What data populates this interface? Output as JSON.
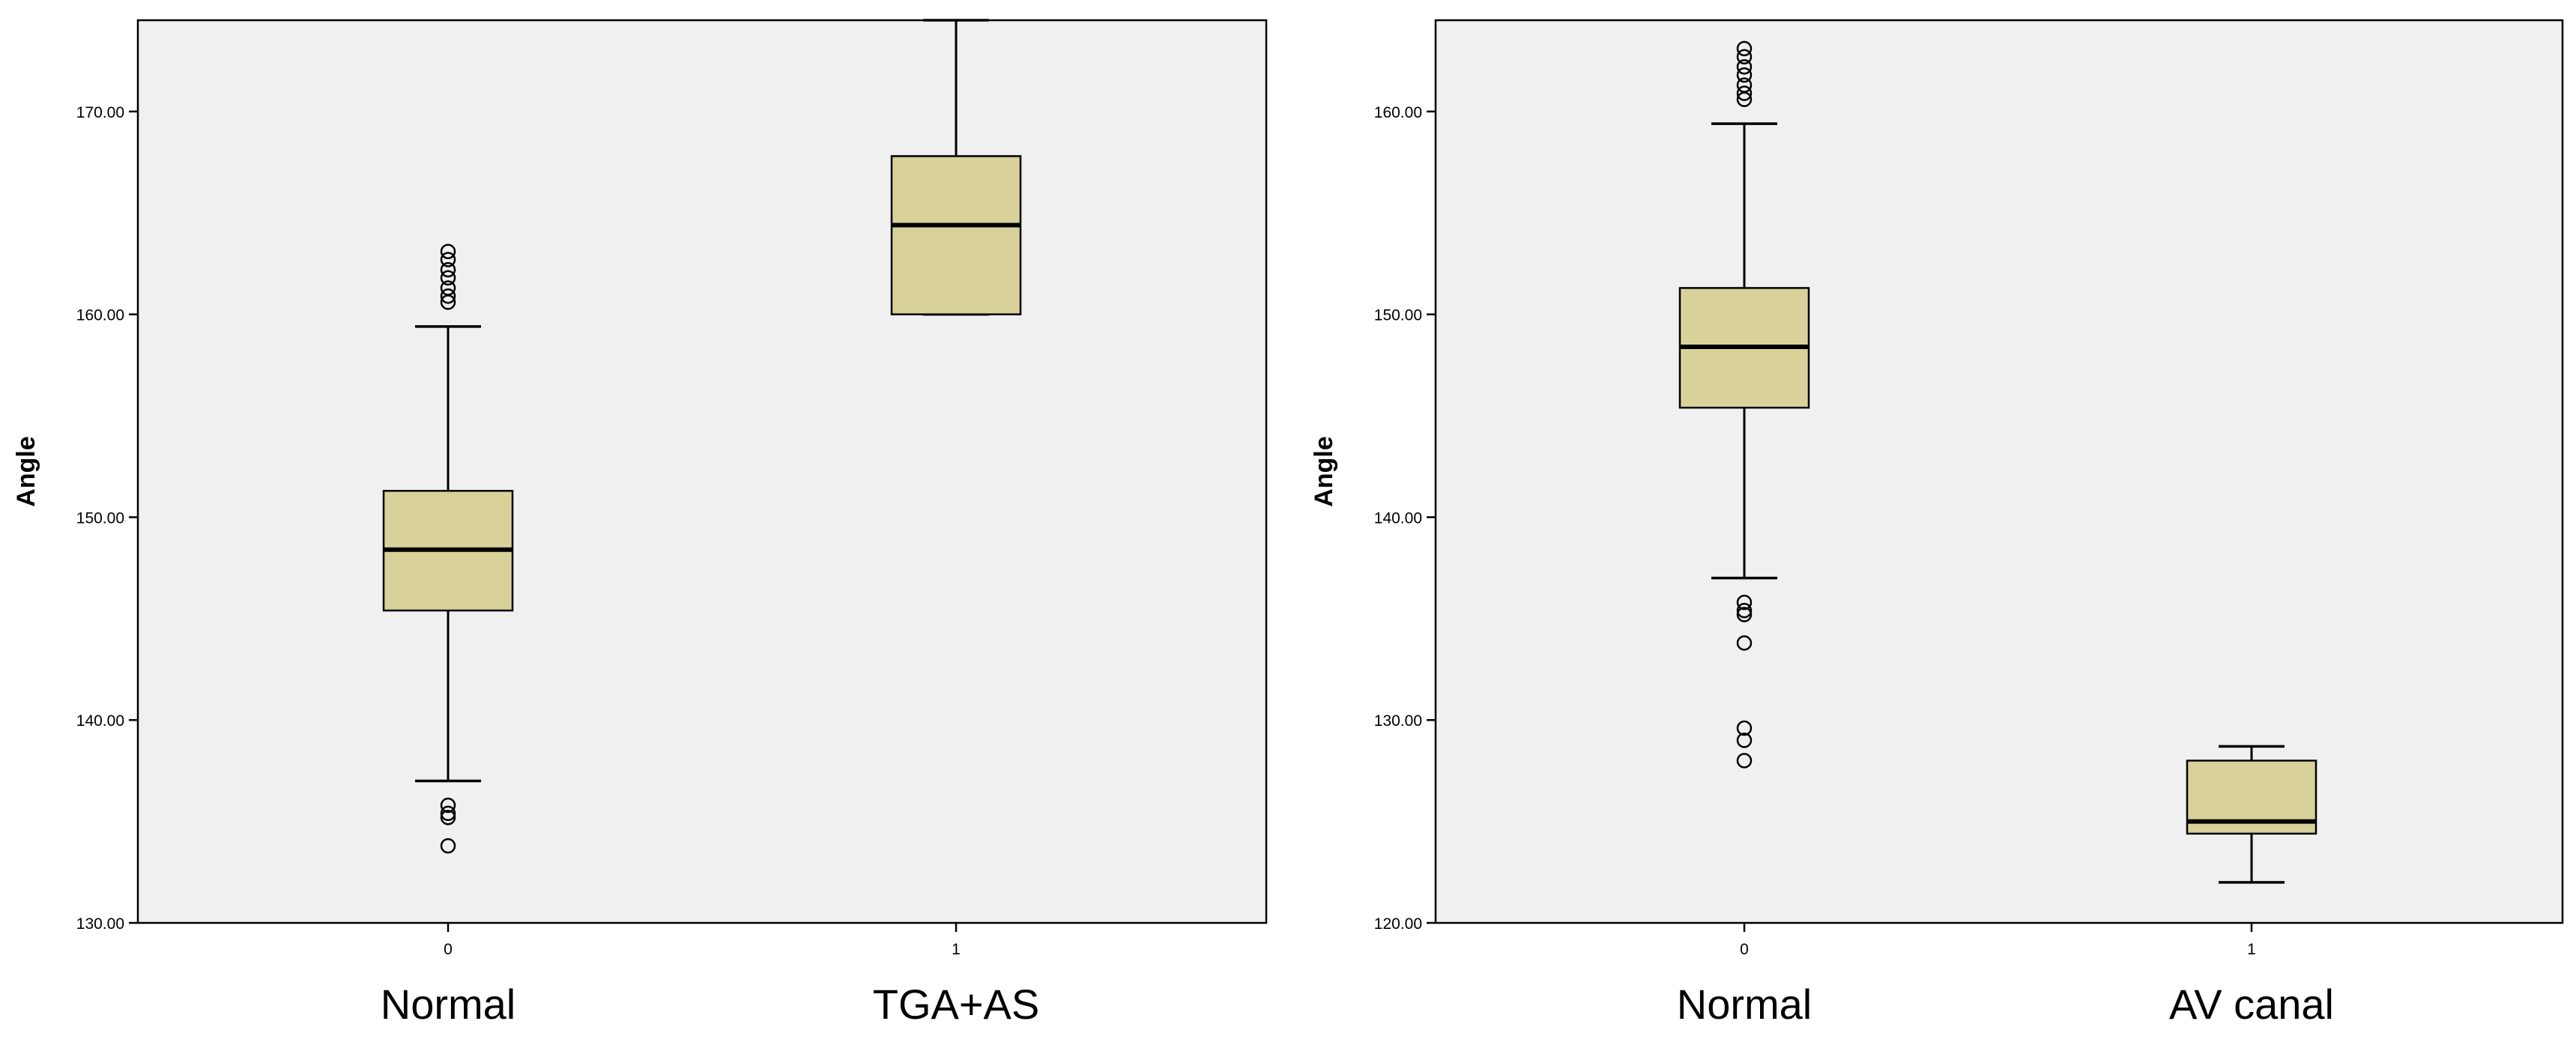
{
  "chart_data": [
    {
      "type": "box",
      "title": "",
      "xlabel": "",
      "ylabel": "Angle",
      "ylim": [
        130,
        174.5
      ],
      "yticks": [
        130,
        140,
        150,
        160,
        170
      ],
      "ytick_labels": [
        "130.00",
        "140.00",
        "150.00",
        "160.00",
        "170.00"
      ],
      "box_color": "#d8d29a",
      "background_color": "#f0f0f0",
      "groups": [
        {
          "code": "0",
          "label": "Normal",
          "whisker_low": 137.0,
          "q1": 145.4,
          "median": 148.4,
          "q3": 151.3,
          "whisker_high": 159.4,
          "outliers": [
            160.6,
            160.9,
            161.3,
            161.8,
            162.2,
            162.7,
            163.1,
            135.2,
            135.4,
            135.8,
            133.8
          ]
        },
        {
          "code": "1",
          "label": "TGA+AS",
          "whisker_low": 160.0,
          "q1": 160.0,
          "median": 164.4,
          "q3": 167.8,
          "whisker_high": 174.5,
          "outliers": []
        }
      ]
    },
    {
      "type": "box",
      "title": "",
      "xlabel": "",
      "ylabel": "Angle",
      "ylim": [
        120,
        164.5
      ],
      "yticks": [
        120,
        130,
        140,
        150,
        160
      ],
      "ytick_labels": [
        "120.00",
        "130.00",
        "140.00",
        "150.00",
        "160.00"
      ],
      "box_color": "#d8d29a",
      "background_color": "#f0f0f0",
      "groups": [
        {
          "code": "0",
          "label": "Normal",
          "whisker_low": 137.0,
          "q1": 145.4,
          "median": 148.4,
          "q3": 151.3,
          "whisker_high": 159.4,
          "outliers": [
            160.6,
            160.9,
            161.3,
            161.8,
            162.2,
            162.7,
            163.1,
            135.2,
            135.4,
            135.8,
            133.8,
            129.6,
            129.0,
            128.0
          ]
        },
        {
          "code": "1",
          "label": "AV canal",
          "whisker_low": 122.0,
          "q1": 124.4,
          "median": 125.0,
          "q3": 128.0,
          "whisker_high": 128.7,
          "outliers": []
        }
      ]
    }
  ]
}
